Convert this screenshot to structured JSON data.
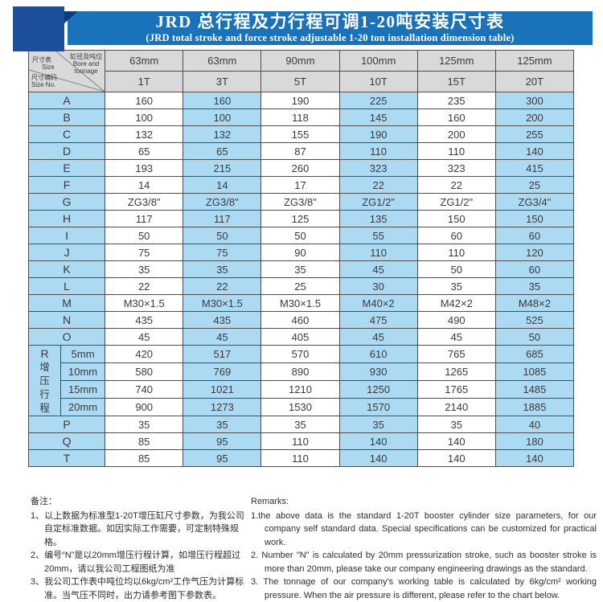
{
  "banner": {
    "title": "JRD 总行程及力行程可调1-20吨安装尺寸表",
    "subtitle": "(JRD total stroke and force stroke adjustable 1-20 ton installation dimension table)"
  },
  "table": {
    "corner": {
      "top_left_zh": "尺寸表",
      "top_left_en": "Size",
      "top_right_zh": "缸径及吨位",
      "top_right_en1": "Bore and",
      "top_right_en2": "tonnage",
      "bottom_left_zh": "尺寸编码",
      "bottom_left_en": "Size No."
    },
    "bore_row": [
      "63mm",
      "63mm",
      "90mm",
      "100mm",
      "125mm",
      "125mm"
    ],
    "tonnage_row": [
      "1T",
      "3T",
      "5T",
      "10T",
      "15T",
      "20T"
    ],
    "rows": [
      {
        "label": "A",
        "values": [
          "160",
          "160",
          "190",
          "225",
          "235",
          "300"
        ]
      },
      {
        "label": "B",
        "values": [
          "100",
          "100",
          "118",
          "145",
          "160",
          "200"
        ]
      },
      {
        "label": "C",
        "values": [
          "132",
          "132",
          "155",
          "190",
          "200",
          "255"
        ]
      },
      {
        "label": "D",
        "values": [
          "65",
          "65",
          "87",
          "110",
          "110",
          "140"
        ]
      },
      {
        "label": "E",
        "values": [
          "193",
          "215",
          "260",
          "323",
          "323",
          "415"
        ]
      },
      {
        "label": "F",
        "values": [
          "14",
          "14",
          "17",
          "22",
          "22",
          "25"
        ]
      },
      {
        "label": "G",
        "values": [
          "ZG3/8\"",
          "ZG3/8\"",
          "ZG3/8\"",
          "ZG1/2\"",
          "ZG1/2\"",
          "ZG3/4\""
        ]
      },
      {
        "label": "H",
        "values": [
          "117",
          "117",
          "125",
          "135",
          "150",
          "150"
        ]
      },
      {
        "label": "I",
        "values": [
          "50",
          "50",
          "50",
          "55",
          "60",
          "60"
        ]
      },
      {
        "label": "J",
        "values": [
          "75",
          "75",
          "90",
          "110",
          "110",
          "120"
        ]
      },
      {
        "label": "K",
        "values": [
          "35",
          "35",
          "35",
          "45",
          "50",
          "60"
        ]
      },
      {
        "label": "L",
        "values": [
          "22",
          "22",
          "25",
          "30",
          "35",
          "35"
        ]
      },
      {
        "label": "M",
        "values": [
          "M30×1.5",
          "M30×1.5",
          "M30×1.5",
          "M40×2",
          "M42×2",
          "M48×2"
        ]
      },
      {
        "label": "N",
        "values": [
          "435",
          "435",
          "460",
          "475",
          "490",
          "525"
        ]
      },
      {
        "label": "O",
        "values": [
          "45",
          "45",
          "405",
          "45",
          "45",
          "50"
        ]
      }
    ],
    "r_section": {
      "label": "R",
      "label_vertical": "增压行程",
      "subrows": [
        {
          "label": "5mm",
          "values": [
            "420",
            "517",
            "570",
            "610",
            "765",
            "685"
          ]
        },
        {
          "label": "10mm",
          "values": [
            "580",
            "769",
            "890",
            "930",
            "1265",
            "1085"
          ]
        },
        {
          "label": "15mm",
          "values": [
            "740",
            "1021",
            "1210",
            "1250",
            "1765",
            "1485"
          ]
        },
        {
          "label": "20mm",
          "values": [
            "900",
            "1273",
            "1530",
            "1570",
            "2140",
            "1885"
          ]
        }
      ]
    },
    "tail_rows": [
      {
        "label": "P",
        "values": [
          "35",
          "35",
          "35",
          "35",
          "35",
          "40"
        ]
      },
      {
        "label": "Q",
        "values": [
          "85",
          "95",
          "110",
          "140",
          "140",
          "180"
        ]
      },
      {
        "label": "T",
        "values": [
          "85",
          "95",
          "110",
          "140",
          "140",
          "140"
        ]
      }
    ]
  },
  "remarks_zh": {
    "title": "备注：",
    "items": [
      "1、以上数据为标准型1-20T增压缸尺寸参数，为我公司自定标准数据。如因实际工作需要，可定制特殊规格。",
      "2、编号“N”是以20mm增压行程计算，如增压行程超过20mm，请以我公司工程图纸为准",
      "3、我公司工作表中吨位均以6kg/cm²工作气压为计算标准。当气压不同时，出力请参考图下参数表。"
    ]
  },
  "remarks_en": {
    "title": "Remarks:",
    "items": [
      "1.the above data is the standard 1-20T booster cylinder size parameters, for our company self standard data. Special specifications can be customized for practical work.",
      "2. Number \"N\" is calculated by 20mm pressurization stroke, such as booster stroke is more than 20mm, please take our company engineering drawings as the standard.",
      "3. The tonnage of our company's working table is calculated by 6kg/cm² working pressure. When the air pressure is different, please refer to the chart below."
    ]
  },
  "colors": {
    "banner_blue": "#1a73ba",
    "corner_navy": "#1d4f9b",
    "cell_blue": "#addaf3",
    "header_gray": "#d9d9d9",
    "border": "#4d4d4d",
    "text": "#3a3a3a"
  }
}
